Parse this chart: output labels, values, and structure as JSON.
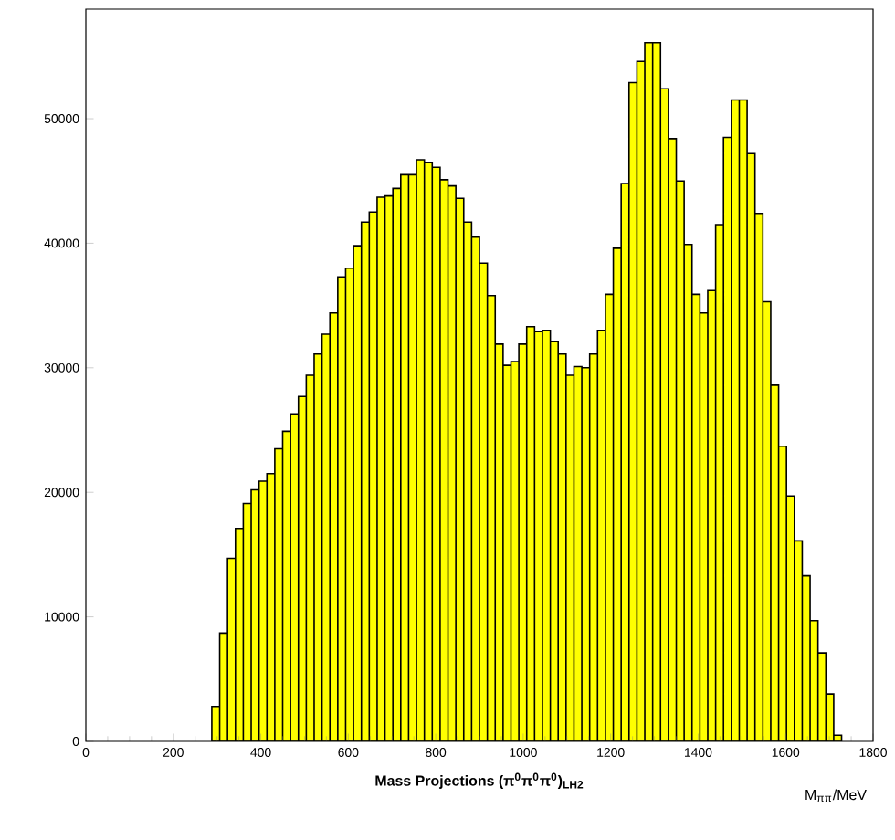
{
  "chart_data": {
    "type": "histogram",
    "xlabel": "Mass Projections (π$^{0}$π$^{0}$π$^{0}$)$_{LH2}$",
    "annotations": [
      "M$_{ππ}$/MeV"
    ],
    "color": "#ffff00",
    "bins": [
      288,
      306,
      324,
      342,
      360,
      378,
      396,
      414,
      432,
      450,
      468,
      486,
      504,
      522,
      540,
      558,
      576,
      594,
      612,
      630,
      648,
      666,
      684,
      702,
      720,
      738,
      756,
      774,
      792,
      810,
      828,
      846,
      864,
      882,
      900,
      918,
      936,
      954,
      972,
      990,
      1008,
      1026,
      1044,
      1062,
      1080,
      1098,
      1116,
      1134,
      1152,
      1170,
      1188,
      1206,
      1224,
      1242,
      1260,
      1278,
      1296,
      1314,
      1332,
      1350,
      1368,
      1386,
      1404,
      1422,
      1440,
      1458,
      1476,
      1494,
      1512,
      1530,
      1548,
      1566,
      1584,
      1602,
      1620,
      1638,
      1656,
      1674,
      1692,
      1710,
      1728
    ],
    "values": [
      2800,
      8700,
      14700,
      17100,
      19100,
      20200,
      20900,
      21500,
      23500,
      24900,
      26300,
      27700,
      29400,
      31100,
      32700,
      34400,
      37300,
      38000,
      39800,
      41700,
      42500,
      43700,
      43800,
      44400,
      45500,
      45500,
      46700,
      46500,
      46100,
      45100,
      44600,
      43600,
      41700,
      40500,
      38400,
      35800,
      31900,
      30200,
      30500,
      31900,
      33300,
      32900,
      33000,
      32100,
      31100,
      29400,
      30100,
      30000,
      31100,
      33000,
      35900,
      39600,
      44800,
      52900,
      54600,
      56100,
      56100,
      52400,
      48400,
      45000,
      39900,
      35900,
      34400,
      36200,
      41500,
      48500,
      51500,
      51500,
      47200,
      42400,
      35300,
      28600,
      23700,
      19700,
      16100,
      13300,
      9700,
      7100,
      3800,
      500
    ],
    "xlim": [
      0,
      1800
    ],
    "ylim": [
      0,
      58800
    ],
    "xticks": [
      0,
      200,
      400,
      600,
      800,
      1000,
      1200,
      1400,
      1600,
      1800
    ],
    "yticks": [
      0,
      10000,
      20000,
      30000,
      40000,
      50000
    ]
  }
}
